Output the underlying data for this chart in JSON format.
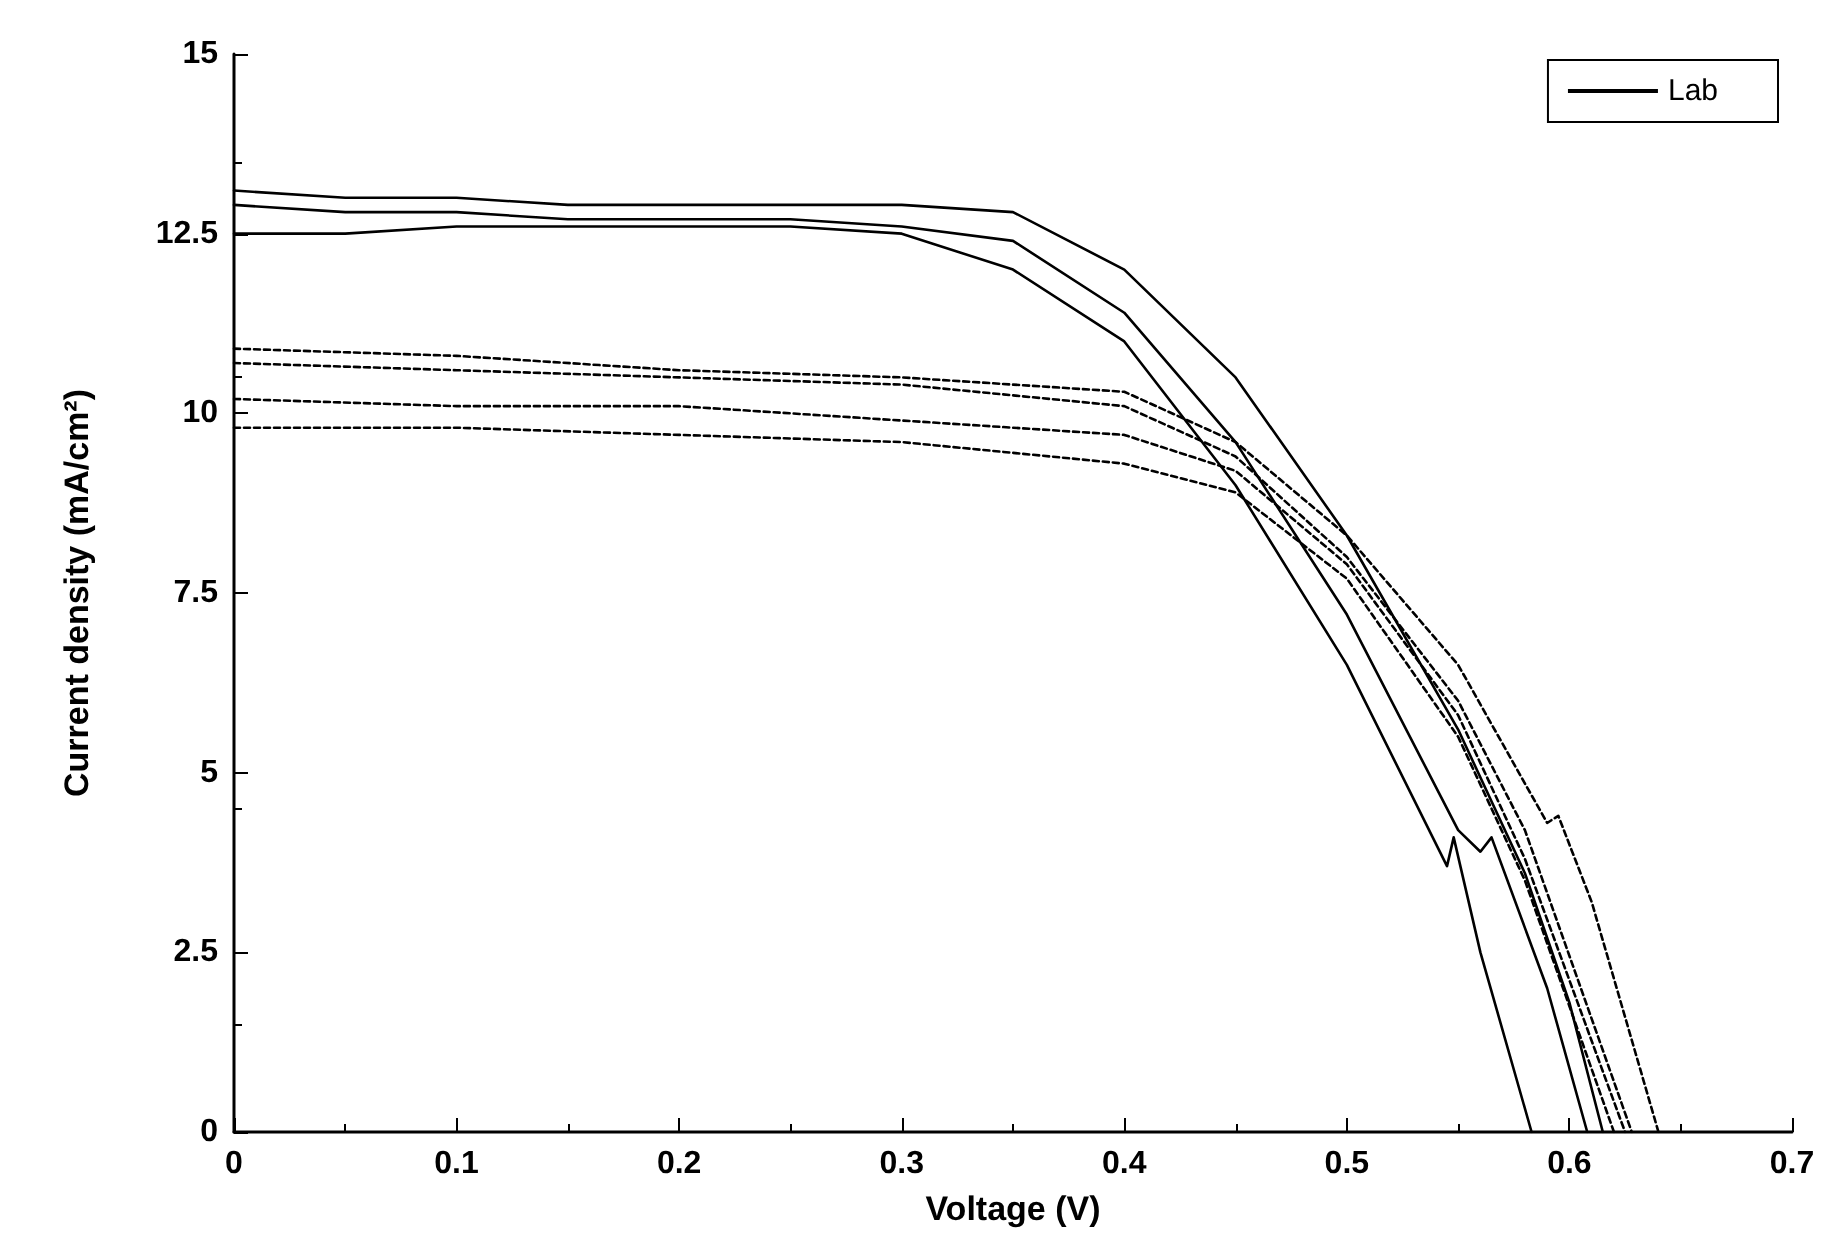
{
  "chart_data": {
    "type": "line",
    "xlabel": "Voltage (V)",
    "ylabel": "Current density (mA/cm²)",
    "xlim": [
      0,
      0.7
    ],
    "xticks": [
      0,
      0.1,
      0.2,
      0.3,
      0.4,
      0.5,
      0.6,
      0.7
    ],
    "ylim": [
      0,
      15
    ],
    "yticks": [
      0,
      2.5,
      5,
      7.5,
      10,
      12.5,
      15
    ],
    "grid": false,
    "legend": "top right",
    "marker": "none",
    "series": [
      {
        "name": "Lab",
        "color": "#000000",
        "line_style": "solid",
        "x": [
          0,
          0.05,
          0.1,
          0.15,
          0.2,
          0.25,
          0.3,
          0.35,
          0.4,
          0.45,
          0.5,
          0.55,
          0.58,
          0.6,
          0.615
        ],
        "values": [
          13.1,
          13.0,
          13.0,
          12.9,
          12.9,
          12.9,
          12.9,
          12.8,
          12.0,
          10.5,
          8.3,
          5.6,
          3.6,
          1.8,
          0
        ]
      },
      {
        "color": "#000000",
        "line_style": "solid",
        "x": [
          0,
          0.05,
          0.1,
          0.15,
          0.2,
          0.25,
          0.3,
          0.35,
          0.4,
          0.45,
          0.5,
          0.55,
          0.56,
          0.565,
          0.59,
          0.608
        ],
        "values": [
          12.9,
          12.8,
          12.8,
          12.7,
          12.7,
          12.7,
          12.6,
          12.4,
          11.4,
          9.6,
          7.2,
          4.2,
          3.9,
          4.1,
          2.0,
          0
        ]
      },
      {
        "color": "#000000",
        "line_style": "solid",
        "x": [
          0,
          0.05,
          0.1,
          0.15,
          0.2,
          0.25,
          0.3,
          0.35,
          0.4,
          0.45,
          0.5,
          0.545,
          0.548,
          0.56,
          0.583
        ],
        "values": [
          12.5,
          12.5,
          12.6,
          12.6,
          12.6,
          12.6,
          12.5,
          12.0,
          11.0,
          9.0,
          6.5,
          3.7,
          4.1,
          2.5,
          0
        ]
      },
      {
        "color": "#000000",
        "line_style": "dashed",
        "x": [
          0,
          0.1,
          0.2,
          0.3,
          0.4,
          0.45,
          0.5,
          0.55,
          0.59,
          0.595,
          0.61,
          0.64
        ],
        "values": [
          10.9,
          10.8,
          10.6,
          10.5,
          10.3,
          9.6,
          8.3,
          6.5,
          4.3,
          4.4,
          3.2,
          0
        ]
      },
      {
        "color": "#000000",
        "line_style": "dashed",
        "x": [
          0,
          0.1,
          0.2,
          0.3,
          0.4,
          0.45,
          0.5,
          0.55,
          0.58,
          0.628
        ],
        "values": [
          10.7,
          10.6,
          10.5,
          10.4,
          10.1,
          9.4,
          8.0,
          6.0,
          4.2,
          0
        ]
      },
      {
        "color": "#000000",
        "line_style": "dashed",
        "x": [
          0,
          0.1,
          0.2,
          0.3,
          0.4,
          0.45,
          0.5,
          0.55,
          0.58,
          0.625
        ],
        "values": [
          10.2,
          10.1,
          10.1,
          9.9,
          9.7,
          9.2,
          7.9,
          5.8,
          3.8,
          0
        ]
      },
      {
        "color": "#000000",
        "line_style": "dashed",
        "x": [
          0,
          0.1,
          0.2,
          0.3,
          0.4,
          0.45,
          0.5,
          0.55,
          0.58,
          0.62
        ],
        "values": [
          9.8,
          9.8,
          9.7,
          9.6,
          9.3,
          8.9,
          7.7,
          5.5,
          3.5,
          0
        ]
      }
    ]
  }
}
